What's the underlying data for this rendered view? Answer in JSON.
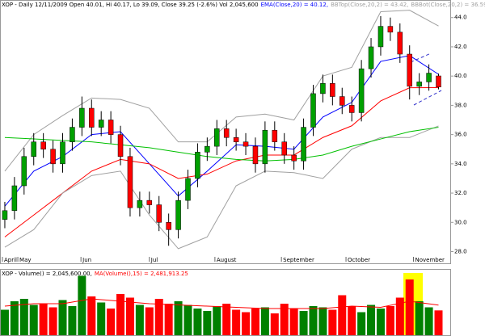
{
  "chart_data": [
    {
      "type": "candlestick",
      "header": [
        {
          "text": "XOP - Daily 12/11/2009 Open 40.01, Hi 40.17, Lo 39.09, Close 39.25 (-2.6%) Vol 2,045,600",
          "color": "#000000"
        },
        {
          "text": "EMA(Close,20) = 40.12,",
          "color": "#0000ff"
        },
        {
          "text": "BBTop(Close,20,2) = 43.42,",
          "color": "#a0a0a0"
        },
        {
          "text": "BBBot(Close,20,2) = 36.59,",
          "color": "#a0a0a0"
        },
        {
          "text": "EMA2(Close,50) = 39.21",
          "color": "#ff0000"
        }
      ],
      "categories": [
        null,
        null,
        null,
        null,
        null,
        null,
        null,
        null,
        null,
        null,
        null,
        null,
        null,
        null,
        null,
        null,
        null,
        null,
        null,
        null,
        null,
        null,
        null,
        null,
        null,
        null,
        null,
        null,
        null,
        null,
        null,
        null,
        null,
        null,
        null,
        null,
        null,
        null,
        null,
        null,
        null,
        null,
        null,
        null,
        null,
        null
      ],
      "open": [
        30.2,
        30.8,
        32.5,
        34.5,
        35.5,
        35,
        34,
        35.5,
        36.5,
        37.8,
        36.5,
        37,
        36,
        34.5,
        31,
        31.5,
        31.2,
        30,
        29.5,
        31.5,
        33,
        34.8,
        35.2,
        36.4,
        35.8,
        35.5,
        35.2,
        34,
        36.3,
        35.5,
        34.6,
        34.2,
        36.5,
        38.8,
        39.5,
        38.6,
        38,
        37.5,
        40.5,
        42,
        43.4,
        43,
        41.5,
        39.3,
        39.6,
        40.01
      ],
      "high": [
        31.4,
        33.1,
        35.1,
        36.1,
        36.1,
        35.6,
        36.1,
        37.1,
        38.6,
        38.4,
        37.6,
        37.6,
        36.6,
        35.1,
        32.1,
        32.1,
        31.8,
        30.6,
        32.1,
        33.6,
        35.4,
        35.8,
        37,
        37,
        36.4,
        36.1,
        35.8,
        36.9,
        36.9,
        36.1,
        35.2,
        37.1,
        39.4,
        40.1,
        40.1,
        39.2,
        38.6,
        41.1,
        42.6,
        44.1,
        44,
        43.6,
        42.1,
        40.2,
        40.8,
        40.17
      ],
      "low": [
        29.6,
        30.2,
        31.9,
        33.9,
        34.4,
        33.4,
        33.4,
        34.9,
        35.9,
        35.9,
        35.9,
        35.4,
        33.9,
        30.4,
        30.4,
        30.6,
        29.4,
        28.4,
        28.9,
        30.9,
        32.4,
        34.2,
        34.6,
        35.2,
        34.9,
        34.6,
        33.4,
        33.4,
        34.9,
        34,
        33.6,
        33.6,
        35.9,
        38.2,
        38,
        37.4,
        36.9,
        36.9,
        39.9,
        41.4,
        42.4,
        40.9,
        38.4,
        38.7,
        39,
        39.09
      ],
      "close": [
        30.8,
        32.5,
        34.5,
        35.5,
        35,
        34,
        35.5,
        36.5,
        37.8,
        36.5,
        37,
        36,
        34.5,
        31,
        31.5,
        31.2,
        30,
        29.5,
        31.5,
        33,
        34.8,
        35.2,
        36.4,
        35.8,
        35.5,
        35.2,
        34,
        36.3,
        35.5,
        34.6,
        34.2,
        36.5,
        38.8,
        39.5,
        38.6,
        38,
        37.5,
        40.5,
        42,
        43.4,
        43,
        41.5,
        39.3,
        39.6,
        40.2,
        39.25
      ],
      "up_color": "#00a000",
      "down_color": "#ff0000",
      "lines": [
        {
          "color": "#0000ff",
          "x": [
            0,
            3,
            6,
            9,
            12,
            15,
            18,
            21,
            24,
            27,
            30,
            33,
            36,
            39,
            42,
            45
          ],
          "values": [
            31.1,
            33.5,
            34.5,
            36,
            36.2,
            34,
            31.8,
            33.5,
            35.3,
            35.2,
            35,
            37.2,
            38.2,
            41,
            41.4,
            40.12
          ]
        },
        {
          "color": "#ff0000",
          "x": [
            0,
            3,
            6,
            9,
            12,
            15,
            18,
            21,
            24,
            27,
            30,
            33,
            36,
            39,
            42,
            45
          ],
          "values": [
            29,
            30.5,
            32,
            33.5,
            34.3,
            34,
            33,
            33.3,
            34.2,
            34.6,
            34.6,
            35.8,
            36.6,
            38.3,
            39.2,
            39.21
          ]
        },
        {
          "color": "#a0a0a0",
          "x": [
            0,
            3,
            6,
            9,
            12,
            15,
            18,
            21,
            24,
            27,
            30,
            33,
            36,
            39,
            42,
            45
          ],
          "values": [
            33.5,
            36,
            37.3,
            38.5,
            38.4,
            37.8,
            35.5,
            35.5,
            37.2,
            37.4,
            37,
            40,
            40.6,
            44.4,
            44.5,
            43.42
          ]
        },
        {
          "color": "#a0a0a0",
          "x": [
            0,
            3,
            6,
            9,
            12,
            15,
            18,
            21,
            24,
            27,
            30,
            33,
            36,
            39,
            42,
            45
          ],
          "values": [
            28.3,
            29.5,
            32,
            33.2,
            33.5,
            30.5,
            28.2,
            29,
            32.5,
            33.5,
            33.4,
            33,
            35,
            35.8,
            35.8,
            36.59
          ]
        },
        {
          "color": "#00c000",
          "x": [
            0,
            3,
            6,
            9,
            12,
            15,
            18,
            21,
            24,
            27,
            30,
            33,
            36,
            39,
            42,
            45
          ],
          "values": [
            35.8,
            35.7,
            35.6,
            35.5,
            35.3,
            35.1,
            34.8,
            34.5,
            34.3,
            34.2,
            34.3,
            34.6,
            35.2,
            35.7,
            36.2,
            36.5
          ]
        }
      ],
      "xlim": [
        -0.5,
        46.3
      ],
      "xticks": [
        {
          "value": -0.25,
          "label": "April"
        },
        {
          "value": 1.35,
          "label": "May"
        },
        {
          "value": 7.9,
          "label": "Jun"
        },
        {
          "value": 15,
          "label": "Jul"
        },
        {
          "value": 21.8,
          "label": "August"
        },
        {
          "value": 28.7,
          "label": "September"
        },
        {
          "value": 35.4,
          "label": "October"
        },
        {
          "value": 42.4,
          "label": "November"
        }
      ],
      "ylim": [
        27.2,
        45.2
      ],
      "yticks": [
        {
          "value": 28,
          "label": "28.0"
        },
        {
          "value": 30,
          "label": "30.0"
        },
        {
          "value": 32,
          "label": "32.0"
        },
        {
          "value": 34,
          "label": "34.0"
        },
        {
          "value": 36,
          "label": "36.0"
        },
        {
          "value": 38,
          "label": "38.0"
        },
        {
          "value": 40,
          "label": "40.0"
        },
        {
          "value": 42,
          "label": "42.0"
        },
        {
          "value": 44,
          "label": "44.0"
        }
      ]
    },
    {
      "type": "bar",
      "header": [
        {
          "text": "XOP - Volume() = 2,045,600.00,",
          "color": "#000000"
        },
        {
          "text": "MA(Volume(),15) = 2,481,913.25",
          "color": "#ff0000"
        }
      ],
      "values": [
        2100000,
        2800000,
        3000000,
        2500000,
        2600000,
        2300000,
        2900000,
        2400000,
        4900000,
        3200000,
        2700000,
        2200000,
        3400000,
        3100000,
        2500000,
        2300000,
        3000000,
        2600000,
        2800000,
        2500000,
        2200000,
        2000000,
        2400000,
        2600000,
        2100000,
        1900000,
        2200000,
        2300000,
        1800000,
        2600000,
        2200000,
        2000000,
        2400000,
        2300000,
        2100000,
        3300000,
        2400000,
        1900000,
        2500000,
        2200000,
        2400000,
        3100000,
        4600000,
        2800000,
        2300000,
        2045600
      ],
      "up_color": "#008000",
      "down_color": "#ff0000",
      "ma": {
        "color": "#ff0000",
        "x": [
          0,
          3,
          6,
          9,
          12,
          15,
          18,
          21,
          24,
          27,
          30,
          33,
          36,
          39,
          42,
          45
        ],
        "values": [
          2400000,
          2600000,
          2600000,
          3000000,
          2800000,
          2600000,
          2500000,
          2400000,
          2300000,
          2200000,
          2200000,
          2200000,
          2400000,
          2300000,
          2800000,
          2481913.25
        ]
      },
      "ylim": [
        0,
        5400000
      ]
    }
  ]
}
